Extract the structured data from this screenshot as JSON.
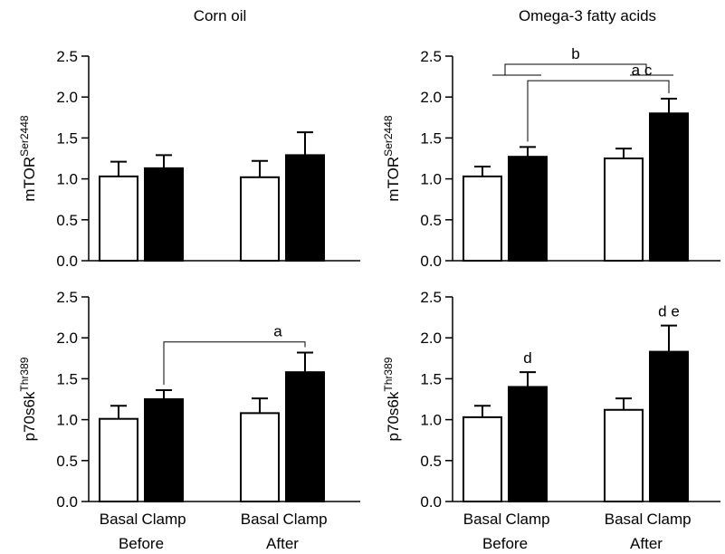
{
  "chart_data": [
    {
      "type": "bar",
      "title": "Corn oil",
      "ylabel_main": "mTOR",
      "ylabel_sup": "Ser2448",
      "ylim": [
        0,
        2.5
      ],
      "yticks": [
        "0.0",
        "0.5",
        "1.0",
        "1.5",
        "2.0",
        "2.5"
      ],
      "groups": [
        "Before",
        "After"
      ],
      "categories": [
        "Basal",
        "Clamp",
        "Basal",
        "Clamp"
      ],
      "values": [
        1.03,
        1.13,
        1.02,
        1.29
      ],
      "errors": [
        0.18,
        0.16,
        0.2,
        0.28
      ],
      "colors": [
        "#ffffff",
        "#000000",
        "#ffffff",
        "#000000"
      ],
      "annotations": []
    },
    {
      "type": "bar",
      "title": "Omega-3 fatty acids",
      "ylabel_main": "mTOR",
      "ylabel_sup": "Ser2448",
      "ylim": [
        0,
        2.5
      ],
      "yticks": [
        "0.0",
        "0.5",
        "1.0",
        "1.5",
        "2.0",
        "2.5"
      ],
      "groups": [
        "Before",
        "After"
      ],
      "categories": [
        "Basal",
        "Clamp",
        "Basal",
        "Clamp"
      ],
      "values": [
        1.03,
        1.27,
        1.25,
        1.8
      ],
      "errors": [
        0.12,
        0.12,
        0.12,
        0.18
      ],
      "colors": [
        "#ffffff",
        "#000000",
        "#ffffff",
        "#000000"
      ],
      "annotations": [
        {
          "label": "b",
          "type": "group-bracket",
          "from_group": 0,
          "to_group": 1,
          "y": 2.4
        },
        {
          "label": "a c",
          "type": "bracket",
          "from": 1,
          "to": 3,
          "y": 2.2
        }
      ]
    },
    {
      "type": "bar",
      "title": "",
      "ylabel_main": "p70s6k",
      "ylabel_sup": "Thr389",
      "ylim": [
        0,
        2.5
      ],
      "yticks": [
        "0.0",
        "0.5",
        "1.0",
        "1.5",
        "2.0",
        "2.5"
      ],
      "groups": [
        "Before",
        "After"
      ],
      "categories": [
        "Basal",
        "Clamp",
        "Basal",
        "Clamp"
      ],
      "values": [
        1.01,
        1.25,
        1.08,
        1.58
      ],
      "errors": [
        0.16,
        0.11,
        0.18,
        0.24
      ],
      "colors": [
        "#ffffff",
        "#000000",
        "#ffffff",
        "#000000"
      ],
      "annotations": [
        {
          "label": "a",
          "type": "bracket",
          "from": 1,
          "to": 3,
          "y": 1.95
        }
      ]
    },
    {
      "type": "bar",
      "title": "",
      "ylabel_main": "p70s6k",
      "ylabel_sup": "Thr389",
      "ylim": [
        0,
        2.5
      ],
      "yticks": [
        "0.0",
        "0.5",
        "1.0",
        "1.5",
        "2.0",
        "2.5"
      ],
      "groups": [
        "Before",
        "After"
      ],
      "categories": [
        "Basal",
        "Clamp",
        "Basal",
        "Clamp"
      ],
      "values": [
        1.03,
        1.4,
        1.12,
        1.83
      ],
      "errors": [
        0.14,
        0.18,
        0.14,
        0.32
      ],
      "colors": [
        "#ffffff",
        "#000000",
        "#ffffff",
        "#000000"
      ],
      "annotations": [
        {
          "label": "d",
          "type": "above",
          "bar": 1
        },
        {
          "label": "d e",
          "type": "above",
          "bar": 3
        }
      ]
    }
  ]
}
